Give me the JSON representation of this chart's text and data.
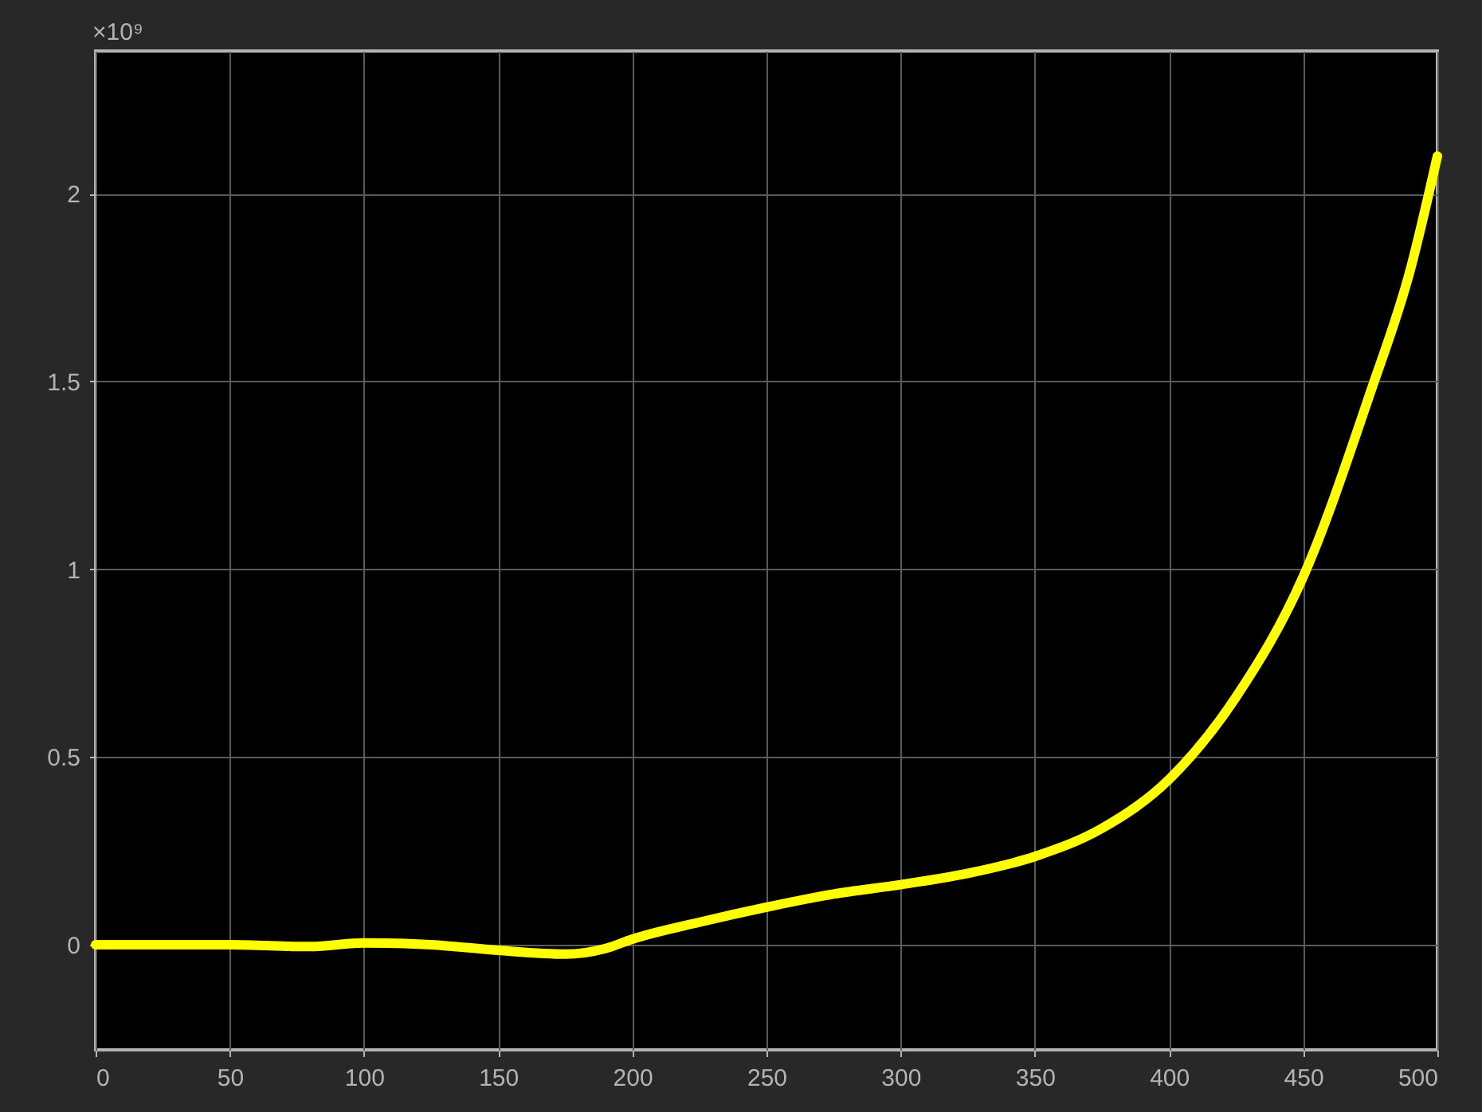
{
  "chart_data": {
    "type": "line",
    "x": [
      0,
      25,
      50,
      80,
      100,
      125,
      150,
      175,
      190,
      200,
      225,
      250,
      275,
      300,
      325,
      350,
      375,
      400,
      425,
      450,
      475,
      490,
      500
    ],
    "series": [
      {
        "color": "#ffff00",
        "values": [
          0.0,
          0.0,
          0.0,
          -0.005,
          0.005,
          0.0,
          -0.015,
          -0.025,
          -0.01,
          0.015,
          0.06,
          0.1,
          0.135,
          0.16,
          0.19,
          0.235,
          0.31,
          0.44,
          0.66,
          0.98,
          1.47,
          1.8,
          2.1
        ]
      }
    ],
    "xlim": [
      0,
      500
    ],
    "ylim": [
      -0.28,
      2.38
    ],
    "xticks": [
      0,
      50,
      100,
      150,
      200,
      250,
      300,
      350,
      400,
      450,
      500
    ],
    "yticks": [
      0,
      0.5,
      1,
      1.5,
      2
    ],
    "annotations": [
      "×10⁹"
    ],
    "grid": true,
    "marker": "none",
    "line_style": "solid"
  }
}
